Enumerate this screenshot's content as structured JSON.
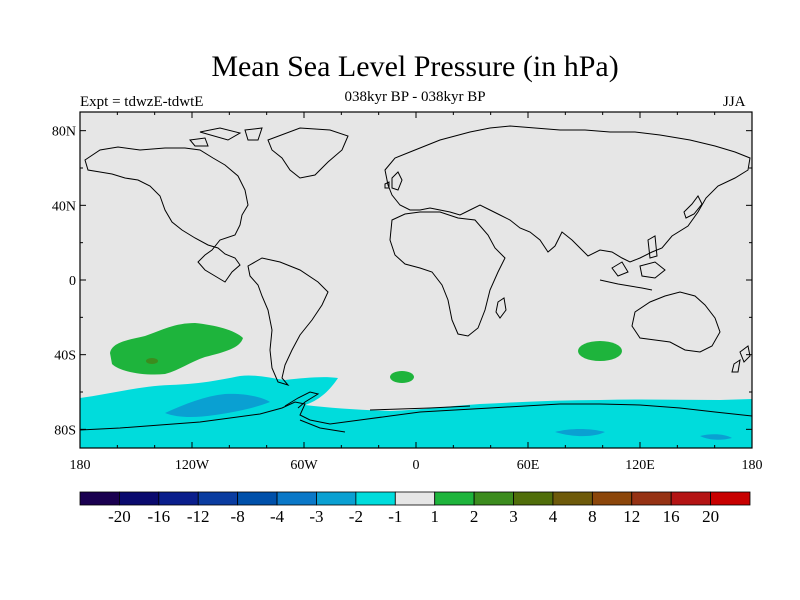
{
  "title": "Mean Sea Level Pressure (in hPa)",
  "subtitle_left": "Expt = tdwzE-tdwtE",
  "subtitle_center": "038kyr BP - 038kyr BP",
  "subtitle_right": "JJA",
  "map": {
    "projection": "cylindrical equidistant",
    "lon_range": [
      -180,
      180
    ],
    "lat_range": [
      -90,
      90
    ],
    "background_color": "#e6e6e6",
    "coastline_color": "#000000",
    "x_ticks": [
      "180",
      "120W",
      "60W",
      "0",
      "60E",
      "120E",
      "180"
    ],
    "y_ticks": [
      "80N",
      "40N",
      "0",
      "40S",
      "80S"
    ]
  },
  "colorbar": {
    "colors": [
      "#1a0050",
      "#0a0a6e",
      "#0a1e8c",
      "#0a3ca0",
      "#0050aa",
      "#0a78c8",
      "#0aa0d2",
      "#00dcdc",
      "#e6e6e6",
      "#1eb43c",
      "#3c8c1e",
      "#506e0a",
      "#6e5a0a",
      "#8c460a",
      "#963214",
      "#b41414",
      "#c80000"
    ],
    "labels": [
      "-20",
      "-16",
      "-12",
      "-8",
      "-4",
      "-3",
      "-2",
      "-1",
      "1",
      "2",
      "3",
      "4",
      "8",
      "12",
      "16",
      "20"
    ]
  },
  "anomaly_fields": [
    {
      "level": "1 to 2",
      "color": "#1eb43c",
      "region": "South Pacific 30S-50S"
    },
    {
      "level": "2 to 3",
      "color": "#3c8c1e",
      "region": "South Pacific ~43S 140W"
    },
    {
      "level": "1 to 2",
      "color": "#1eb43c",
      "region": "South Indian Ocean ~40S 100E"
    },
    {
      "level": "1 to 2",
      "color": "#1eb43c",
      "region": "South Atlantic ~50S 10W"
    },
    {
      "level": "-2 to -1",
      "color": "#00dcdc",
      "region": "Southern Ocean band 60S-90S"
    },
    {
      "level": "-3 to -2",
      "color": "#0aa0d2",
      "region": "Southern Ocean embedded patches"
    }
  ]
}
